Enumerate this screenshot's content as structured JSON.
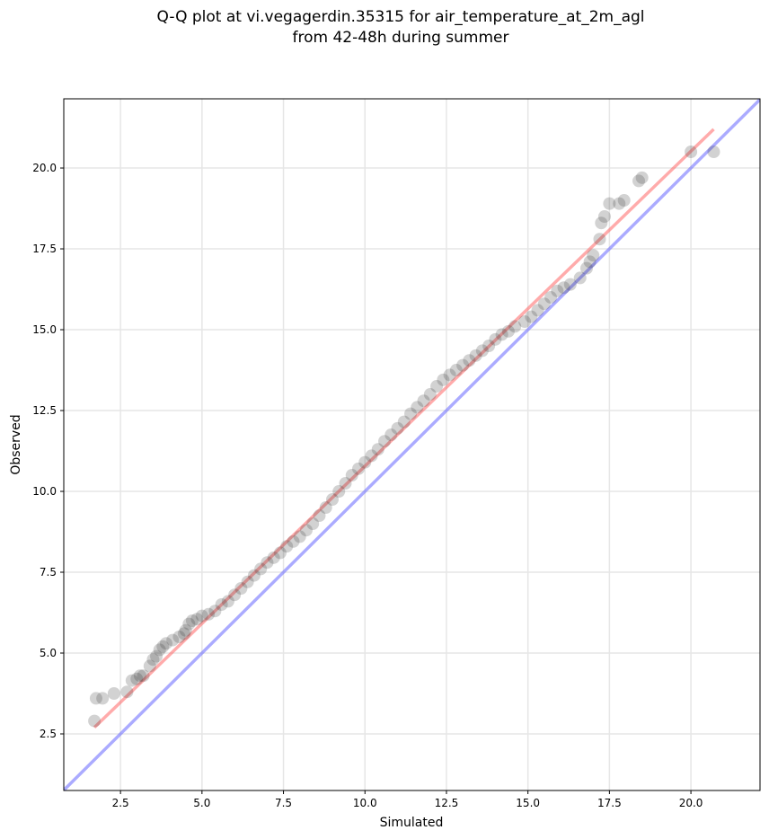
{
  "chart_data": {
    "type": "scatter",
    "title_lines": [
      "Q-Q plot at vi.vegagerdin.35315 for air_temperature_at_2m_agl",
      "from 42-48h during summer"
    ],
    "x_label": "Simulated",
    "y_label": "Observed",
    "xlim": [
      0.76,
      22.12
    ],
    "ylim": [
      0.75,
      22.14
    ],
    "xticks": [
      {
        "value": 2.5,
        "label": "2.5"
      },
      {
        "value": 5,
        "label": "5.0"
      },
      {
        "value": 7.5,
        "label": "7.5"
      },
      {
        "value": 10,
        "label": "10.0"
      },
      {
        "value": 12.5,
        "label": "12.5"
      },
      {
        "value": 15,
        "label": "15.0"
      },
      {
        "value": 17.5,
        "label": "17.5"
      },
      {
        "value": 20,
        "label": "20.0"
      }
    ],
    "yticks": [
      {
        "value": 2.5,
        "label": "2.5"
      },
      {
        "value": 5,
        "label": "5.0"
      },
      {
        "value": 7.5,
        "label": "7.5"
      },
      {
        "value": 10,
        "label": "10.0"
      },
      {
        "value": 12.5,
        "label": "12.5"
      },
      {
        "value": 15,
        "label": "15.0"
      },
      {
        "value": 17.5,
        "label": "17.5"
      },
      {
        "value": 20,
        "label": "20.0"
      }
    ],
    "grid": true,
    "point_color": "#333333",
    "point_alpha": 0.22,
    "x": [
      1.7,
      1.75,
      1.95,
      2.3,
      2.7,
      2.85,
      3.0,
      3.1,
      3.2,
      3.4,
      3.5,
      3.6,
      3.7,
      3.8,
      3.9,
      4.1,
      4.3,
      4.45,
      4.5,
      4.6,
      4.7,
      4.85,
      5.0,
      5.2,
      5.4,
      5.6,
      5.8,
      6.0,
      6.2,
      6.4,
      6.6,
      6.8,
      7.0,
      7.2,
      7.4,
      7.6,
      7.8,
      8.0,
      8.2,
      8.4,
      8.6,
      8.8,
      9.0,
      9.2,
      9.4,
      9.6,
      9.8,
      10.0,
      10.2,
      10.4,
      10.6,
      10.8,
      11.0,
      11.2,
      11.4,
      11.6,
      11.8,
      12.0,
      12.2,
      12.4,
      12.6,
      12.8,
      13.0,
      13.2,
      13.4,
      13.6,
      13.8,
      14.0,
      14.2,
      14.4,
      14.6,
      14.9,
      15.1,
      15.3,
      15.5,
      15.7,
      15.9,
      16.1,
      16.3,
      16.6,
      16.8,
      16.9,
      17.0,
      17.2,
      17.25,
      17.35,
      17.5,
      17.8,
      17.95,
      18.4,
      18.5,
      20.0,
      20.7
    ],
    "values": [
      2.9,
      3.6,
      3.6,
      3.75,
      3.8,
      4.15,
      4.2,
      4.3,
      4.3,
      4.6,
      4.8,
      4.9,
      5.1,
      5.2,
      5.3,
      5.4,
      5.5,
      5.6,
      5.7,
      5.9,
      6.0,
      6.05,
      6.15,
      6.2,
      6.3,
      6.5,
      6.6,
      6.8,
      7.0,
      7.2,
      7.4,
      7.6,
      7.8,
      7.95,
      8.1,
      8.3,
      8.45,
      8.6,
      8.8,
      9.0,
      9.25,
      9.5,
      9.75,
      10.0,
      10.25,
      10.5,
      10.7,
      10.9,
      11.1,
      11.3,
      11.55,
      11.75,
      11.95,
      12.15,
      12.4,
      12.6,
      12.8,
      13.0,
      13.25,
      13.45,
      13.6,
      13.75,
      13.9,
      14.05,
      14.2,
      14.35,
      14.5,
      14.7,
      14.85,
      14.95,
      15.1,
      15.25,
      15.4,
      15.6,
      15.8,
      16.0,
      16.2,
      16.3,
      16.4,
      16.6,
      16.9,
      17.1,
      17.3,
      17.8,
      18.3,
      18.5,
      18.9,
      18.9,
      19.0,
      19.6,
      19.7,
      20.5,
      20.5
    ],
    "lines": [
      {
        "color": "#6666ff",
        "x": [
          0.76,
          22.12
        ],
        "y": [
          0.76,
          22.12
        ]
      },
      {
        "color": "#ff6666",
        "x": [
          1.7,
          20.7
        ],
        "y": [
          2.7,
          21.2
        ]
      }
    ]
  }
}
